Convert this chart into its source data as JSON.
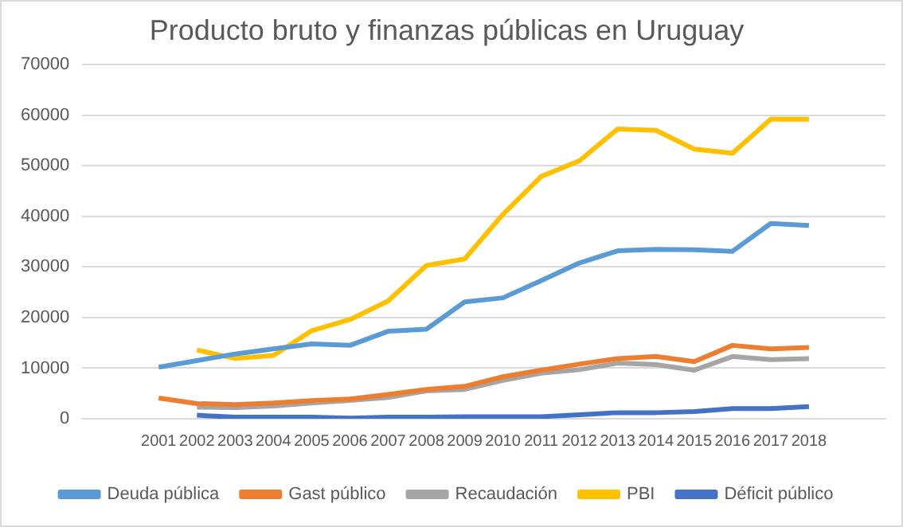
{
  "chart_data": {
    "type": "line",
    "title": "Producto bruto y finanzas públicas en Uruguay",
    "categories": [
      null,
      null,
      "2001",
      "2002",
      "2003",
      "2004",
      "2005",
      "2006",
      "2007",
      "2008",
      "2009",
      "2010",
      "2011",
      "2012",
      "2013",
      "2014",
      "2015",
      "2016",
      "2017",
      "2018",
      null,
      null
    ],
    "series": [
      {
        "name": "Deuda pública",
        "color": "#5b9bd5",
        "values": [
          null,
          null,
          10200,
          11500,
          12800,
          13800,
          14800,
          14500,
          17300,
          17700,
          23100,
          23900,
          27300,
          30800,
          33200,
          33500,
          33400,
          33100,
          38600,
          38200,
          null,
          null
        ]
      },
      {
        "name": "Gast público",
        "color": "#ed7d31",
        "values": [
          null,
          null,
          4100,
          3000,
          2800,
          3100,
          3600,
          3900,
          4800,
          5800,
          6400,
          8300,
          9600,
          10800,
          11900,
          12300,
          11300,
          14500,
          13800,
          14100,
          null,
          null
        ]
      },
      {
        "name": "Recaudación",
        "color": "#a5a5a5",
        "values": [
          null,
          null,
          null,
          2300,
          2200,
          2500,
          3100,
          3600,
          4200,
          5500,
          5800,
          7600,
          9000,
          9700,
          11000,
          10700,
          9600,
          12300,
          11700,
          11900,
          null,
          null
        ]
      },
      {
        "name": "PBI",
        "color": "#ffc000",
        "values": [
          null,
          null,
          null,
          13600,
          11900,
          12500,
          17400,
          19600,
          23300,
          30300,
          31600,
          40400,
          47900,
          51000,
          57300,
          57000,
          53300,
          52500,
          59200,
          59200,
          null,
          null
        ]
      },
      {
        "name": "Déficit público",
        "color": "#4472c4",
        "values": [
          null,
          null,
          null,
          700,
          300,
          300,
          300,
          100,
          300,
          300,
          400,
          400,
          400,
          800,
          1200,
          1200,
          1400,
          2000,
          2000,
          2400,
          null,
          null
        ]
      }
    ],
    "ylim": [
      0,
      70000
    ],
    "yticks": [
      0,
      10000,
      20000,
      30000,
      40000,
      50000,
      60000,
      70000
    ],
    "grid": "y",
    "legend": "bottom",
    "marker": "none",
    "line_style": "solid"
  }
}
